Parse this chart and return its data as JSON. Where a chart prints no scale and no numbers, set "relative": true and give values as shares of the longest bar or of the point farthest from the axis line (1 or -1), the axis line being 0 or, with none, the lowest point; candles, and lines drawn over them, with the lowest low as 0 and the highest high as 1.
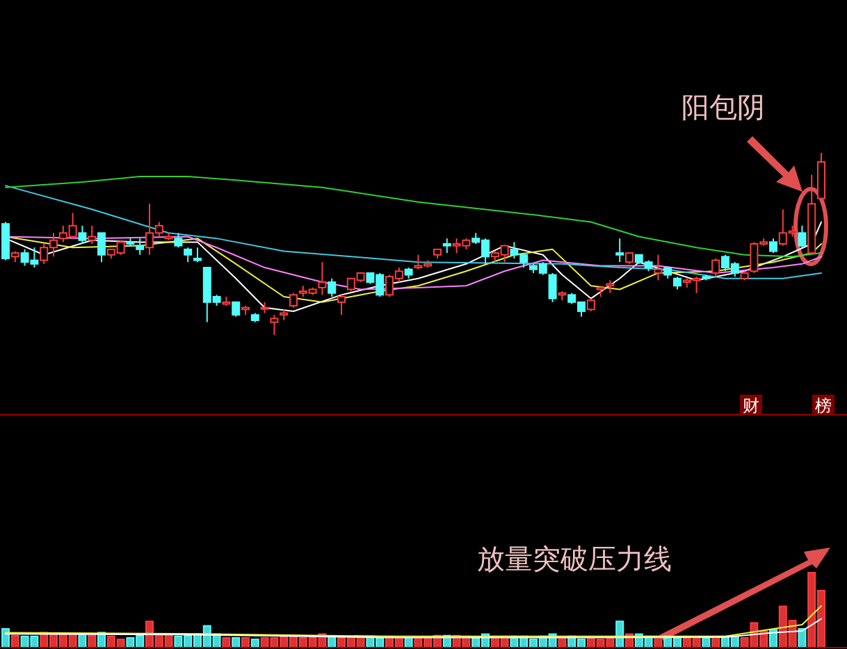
{
  "chart_data": [
    {
      "type": "candlestick",
      "relative": true,
      "categories": [
        null,
        null,
        null,
        null,
        null,
        null,
        null,
        null,
        null,
        null,
        null,
        null,
        null,
        null,
        null,
        null,
        null,
        null,
        null,
        null,
        null,
        null,
        null,
        null,
        null,
        null,
        null,
        null,
        null,
        null,
        null,
        null,
        null,
        null,
        null,
        null,
        null,
        null,
        null,
        null,
        null,
        null,
        null,
        null,
        null,
        null,
        null,
        null,
        null,
        null,
        null,
        null,
        null,
        null,
        null,
        null,
        null,
        null,
        null,
        null,
        null,
        null,
        null,
        null,
        null,
        null,
        null,
        null,
        null,
        null,
        null,
        null,
        null,
        null,
        null,
        null,
        null,
        null,
        null,
        null,
        null,
        null,
        null,
        null,
        null,
        null
      ],
      "ohlc": [
        [
          0.61,
          0.62,
          0.41,
          0.42
        ],
        [
          0.43,
          0.46,
          0.4,
          0.45
        ],
        [
          0.45,
          0.47,
          0.38,
          0.4
        ],
        [
          0.41,
          0.48,
          0.37,
          0.39
        ],
        [
          0.41,
          0.5,
          0.39,
          0.48
        ],
        [
          0.48,
          0.56,
          0.43,
          0.52
        ],
        [
          0.53,
          0.6,
          0.51,
          0.56
        ],
        [
          0.54,
          0.67,
          0.53,
          0.6
        ],
        [
          0.56,
          0.6,
          0.5,
          0.52
        ],
        [
          0.52,
          0.6,
          0.5,
          0.54
        ],
        [
          0.56,
          0.56,
          0.4,
          0.44
        ],
        [
          0.44,
          0.47,
          0.42,
          0.47
        ],
        [
          0.45,
          0.52,
          0.44,
          0.51
        ],
        [
          0.51,
          0.53,
          0.49,
          0.5
        ],
        [
          0.49,
          0.53,
          0.44,
          0.47
        ],
        [
          0.48,
          0.72,
          0.44,
          0.56
        ],
        [
          0.56,
          0.62,
          0.54,
          0.6
        ],
        [
          0.53,
          0.56,
          0.52,
          0.54
        ],
        [
          0.53,
          0.56,
          0.48,
          0.49
        ],
        [
          0.47,
          0.48,
          0.4,
          0.44
        ],
        [
          0.42,
          0.48,
          0.4,
          0.41
        ],
        [
          0.37,
          0.37,
          0.07,
          0.18
        ],
        [
          0.21,
          0.22,
          0.16,
          0.18
        ],
        [
          0.17,
          0.21,
          0.16,
          0.18
        ],
        [
          0.18,
          0.18,
          0.1,
          0.11
        ],
        [
          0.14,
          0.16,
          0.11,
          0.15
        ],
        [
          0.11,
          0.12,
          0.07,
          0.08
        ],
        [
          0.15,
          0.18,
          0.12,
          0.15
        ],
        [
          0.07,
          0.11,
          0,
          0.09
        ],
        [
          0.11,
          0.14,
          0.08,
          0.12
        ],
        [
          0.16,
          0.23,
          0.15,
          0.22
        ],
        [
          0.23,
          0.27,
          0.21,
          0.24
        ],
        [
          0.23,
          0.26,
          0.22,
          0.25
        ],
        [
          0.26,
          0.4,
          0.22,
          0.29
        ],
        [
          0.29,
          0.31,
          0.21,
          0.23
        ],
        [
          0.18,
          0.22,
          0.11,
          0.21
        ],
        [
          0.25,
          0.31,
          0.24,
          0.31
        ],
        [
          0.3,
          0.34,
          0.29,
          0.34
        ],
        [
          0.34,
          0.34,
          0.28,
          0.29
        ],
        [
          0.33,
          0.34,
          0.21,
          0.22
        ],
        [
          0.22,
          0.33,
          0.21,
          0.32
        ],
        [
          0.31,
          0.37,
          0.29,
          0.35
        ],
        [
          0.36,
          0.37,
          0.31,
          0.33
        ],
        [
          0.37,
          0.44,
          0.36,
          0.38
        ],
        [
          0.38,
          0.41,
          0.37,
          0.39
        ],
        [
          0.44,
          0.47,
          0.42,
          0.47
        ],
        [
          0.5,
          0.53,
          0.45,
          0.49
        ],
        [
          0.49,
          0.53,
          0.45,
          0.5
        ],
        [
          0.49,
          0.53,
          0.47,
          0.52
        ],
        [
          0.53,
          0.56,
          0.5,
          0.51
        ],
        [
          0.52,
          0.53,
          0.39,
          0.43
        ],
        [
          0.43,
          0.46,
          0.4,
          0.45
        ],
        [
          0.44,
          0.49,
          0.4,
          0.49
        ],
        [
          0.47,
          0.51,
          0.42,
          0.44
        ],
        [
          0.44,
          0.45,
          0.37,
          0.4
        ],
        [
          0.38,
          0.39,
          0.34,
          0.36
        ],
        [
          0.39,
          0.4,
          0.33,
          0.34
        ],
        [
          0.33,
          0.34,
          0.18,
          0.2
        ],
        [
          0.22,
          0.24,
          0.19,
          0.23
        ],
        [
          0.22,
          0.23,
          0.17,
          0.18
        ],
        [
          0.18,
          0.18,
          0.1,
          0.13
        ],
        [
          0.14,
          0.2,
          0.13,
          0.19
        ],
        [
          0.25,
          0.27,
          0.21,
          0.26
        ],
        [
          0.27,
          0.3,
          0.23,
          0.28
        ],
        [
          0.45,
          0.53,
          0.4,
          0.44
        ],
        [
          0.4,
          0.45,
          0.39,
          0.45
        ],
        [
          0.44,
          0.44,
          0.39,
          0.4
        ],
        [
          0.4,
          0.41,
          0.35,
          0.37
        ],
        [
          0.34,
          0.44,
          0.3,
          0.36
        ],
        [
          0.37,
          0.37,
          0.31,
          0.33
        ],
        [
          0.31,
          0.32,
          0.25,
          0.27
        ],
        [
          0.29,
          0.31,
          0.26,
          0.3
        ],
        [
          0.3,
          0.32,
          0.23,
          0.31
        ],
        [
          0.32,
          0.33,
          0.3,
          0.31
        ],
        [
          0.34,
          0.42,
          0.32,
          0.41
        ],
        [
          0.43,
          0.44,
          0.35,
          0.37
        ],
        [
          0.39,
          0.4,
          0.32,
          0.34
        ],
        [
          0.31,
          0.35,
          0.3,
          0.34
        ],
        [
          0.35,
          0.51,
          0.34,
          0.5
        ],
        [
          0.5,
          0.53,
          0.49,
          0.51
        ],
        [
          0.51,
          0.53,
          0.45,
          0.46
        ],
        [
          0.5,
          0.69,
          0.49,
          0.56
        ],
        [
          0.56,
          0.6,
          0.54,
          0.57
        ],
        [
          0.56,
          0.6,
          0.48,
          0.49
        ],
        [
          0.45,
          0.88,
          0.44,
          0.72
        ],
        [
          0.75,
          1,
          0.74,
          0.95
        ]
      ],
      "colors": [
        "#54fcfc",
        "#ff3c3c",
        "#54fcfc",
        "#54fcfc",
        "#ff3c3c",
        "#ff3c3c",
        "#ff3c3c",
        "#ff3c3c",
        "#54fcfc",
        "#ff3c3c",
        "#54fcfc",
        "#ff3c3c",
        "#ff3c3c",
        "#54fcfc",
        "#54fcfc",
        "#ff3c3c",
        "#ff3c3c",
        "#ff3c3c",
        "#54fcfc",
        "#54fcfc",
        "#54fcfc",
        "#54fcfc",
        "#54fcfc",
        "#ff3c3c",
        "#54fcfc",
        "#ff3c3c",
        "#54fcfc",
        "#ff3c3c",
        "#ff3c3c",
        "#ff3c3c",
        "#ff3c3c",
        "#ff3c3c",
        "#ff3c3c",
        "#ff3c3c",
        "#54fcfc",
        "#ff3c3c",
        "#ff3c3c",
        "#ff3c3c",
        "#54fcfc",
        "#54fcfc",
        "#ff3c3c",
        "#ff3c3c",
        "#54fcfc",
        "#ff3c3c",
        "#ff3c3c",
        "#ff3c3c",
        "#54fcfc",
        "#ff3c3c",
        "#ff3c3c",
        "#54fcfc",
        "#54fcfc",
        "#ff3c3c",
        "#ff3c3c",
        "#54fcfc",
        "#54fcfc",
        "#54fcfc",
        "#54fcfc",
        "#54fcfc",
        "#ff3c3c",
        "#54fcfc",
        "#54fcfc",
        "#ff3c3c",
        "#ff3c3c",
        "#ff3c3c",
        "#54fcfc",
        "#ff3c3c",
        "#54fcfc",
        "#54fcfc",
        "#ff3c3c",
        "#54fcfc",
        "#54fcfc",
        "#ff3c3c",
        "#ff3c3c",
        "#54fcfc",
        "#ff3c3c",
        "#54fcfc",
        "#54fcfc",
        "#ff3c3c",
        "#ff3c3c",
        "#ff3c3c",
        "#54fcfc",
        "#ff3c3c",
        "#ff3c3c",
        "#54fcfc",
        "#ff3c3c",
        "#ff3c3c"
      ],
      "series": [
        {
          "type": "line",
          "color": "#ffffff",
          "values": [
            0.53,
            null,
            null,
            null,
            0.44,
            null,
            null,
            null,
            null,
            0.52,
            null,
            null,
            null,
            null,
            0.51,
            null,
            null,
            null,
            null,
            null,
            0.51,
            null,
            null,
            null,
            0.31,
            null,
            null,
            0.15,
            null,
            null,
            0.13,
            null,
            null,
            null,
            null,
            0.22,
            null,
            null,
            null,
            0.27,
            null,
            null,
            null,
            0.31,
            null,
            null,
            null,
            null,
            0.39,
            null,
            null,
            null,
            0.49,
            null,
            null,
            null,
            0.44,
            null,
            0.33,
            null,
            null,
            0.2,
            null,
            null,
            0.31,
            null,
            0.4,
            null,
            null,
            0.35,
            null,
            null,
            0.3,
            null,
            null,
            null,
            null,
            0.35,
            null,
            null,
            null,
            0.43,
            null,
            null,
            0.5,
            0.62
          ]
        },
        {
          "type": "line",
          "color": "#f0f040",
          "values": [
            0.54,
            null,
            null,
            null,
            null,
            null,
            null,
            0.48,
            null,
            null,
            null,
            null,
            null,
            null,
            0.49,
            null,
            null,
            null,
            null,
            null,
            0.53,
            null,
            null,
            null,
            0.39,
            null,
            null,
            null,
            null,
            0.21,
            null,
            null,
            null,
            0.18,
            null,
            null,
            null,
            null,
            null,
            0.24,
            null,
            null,
            null,
            0.27,
            null,
            null,
            null,
            null,
            0.35,
            null,
            null,
            null,
            null,
            0.44,
            null,
            null,
            null,
            0.47,
            null,
            null,
            null,
            0.27,
            null,
            null,
            0.25,
            null,
            null,
            null,
            0.34,
            null,
            null,
            null,
            null,
            null,
            0.35,
            null,
            null,
            null,
            null,
            null,
            0.4,
            null,
            null,
            null,
            0.45,
            0.5
          ]
        },
        {
          "type": "line",
          "color": "#ff80ff",
          "values": [
            0.54,
            null,
            null,
            null,
            null,
            null,
            null,
            null,
            null,
            0.53,
            null,
            null,
            null,
            null,
            null,
            null,
            null,
            null,
            null,
            0.54,
            null,
            null,
            0.48,
            null,
            null,
            null,
            null,
            0.37,
            null,
            null,
            null,
            null,
            null,
            0.29,
            null,
            null,
            null,
            0.25,
            null,
            null,
            null,
            null,
            null,
            0.26,
            null,
            null,
            null,
            null,
            0.27,
            null,
            null,
            null,
            0.35,
            null,
            null,
            null,
            0.41,
            null,
            null,
            null,
            null,
            null,
            0.38,
            null,
            null,
            null,
            null,
            null,
            0.38,
            null,
            null,
            null,
            null,
            null,
            0.34,
            null,
            null,
            null,
            null,
            null,
            0.37,
            null,
            null,
            0.39,
            null,
            0.43
          ]
        },
        {
          "type": "line",
          "color": "#40c8e0",
          "values": [
            0.82,
            null,
            null,
            null,
            null,
            null,
            null,
            null,
            null,
            0.69,
            null,
            null,
            null,
            null,
            null,
            null,
            null,
            0.56,
            null,
            null,
            null,
            null,
            0.53,
            null,
            null,
            null,
            null,
            null,
            null,
            0.46,
            null,
            null,
            null,
            null,
            null,
            null,
            0.43,
            null,
            null,
            null,
            null,
            null,
            null,
            0.4,
            null,
            null,
            null,
            null,
            null,
            null,
            null,
            null,
            null,
            null,
            null,
            null,
            null,
            null,
            0.39,
            null,
            null,
            null,
            null,
            null,
            0.37,
            null,
            null,
            null,
            null,
            0.36,
            null,
            null,
            null,
            null,
            null,
            0.31,
            null,
            null,
            null,
            null,
            null,
            0.31,
            null,
            null,
            null,
            0.34
          ]
        },
        {
          "type": "line",
          "color": "#30d030",
          "values": [
            0.81,
            null,
            null,
            null,
            null,
            null,
            null,
            null,
            0.84,
            null,
            null,
            null,
            null,
            null,
            0.87,
            null,
            null,
            null,
            null,
            0.87,
            null,
            null,
            null,
            null,
            0.85,
            null,
            null,
            null,
            null,
            null,
            null,
            null,
            null,
            0.81,
            null,
            null,
            null,
            null,
            null,
            null,
            null,
            null,
            null,
            0.73,
            null,
            null,
            null,
            null,
            null,
            null,
            null,
            null,
            null,
            null,
            null,
            0.66,
            null,
            null,
            null,
            null,
            null,
            0.62,
            null,
            null,
            null,
            null,
            0.54,
            null,
            null,
            null,
            null,
            null,
            0.48,
            null,
            null,
            null,
            null,
            0.44,
            null,
            null,
            null,
            null,
            0.43,
            null,
            null,
            0.45
          ]
        }
      ],
      "annotations": [
        "阳包阴",
        "财",
        "榜"
      ]
    },
    {
      "type": "bar",
      "relative": true,
      "categories": [
        null,
        null,
        null,
        null,
        null,
        null,
        null,
        null,
        null,
        null,
        null,
        null,
        null,
        null,
        null,
        null,
        null,
        null,
        null,
        null,
        null,
        null,
        null,
        null,
        null,
        null,
        null,
        null,
        null,
        null,
        null,
        null,
        null,
        null,
        null,
        null,
        null,
        null,
        null,
        null,
        null,
        null,
        null,
        null,
        null,
        null,
        null,
        null,
        null,
        null,
        null,
        null,
        null,
        null,
        null,
        null,
        null,
        null,
        null,
        null,
        null,
        null,
        null,
        null,
        null,
        null,
        null,
        null,
        null,
        null,
        null,
        null,
        null,
        null,
        null,
        null,
        null,
        null,
        null,
        null,
        null,
        null,
        null,
        null,
        null,
        null
      ],
      "series": [
        {
          "type": "bar",
          "values": [
            0.25,
            0.16,
            0.15,
            0.15,
            0.2,
            0.18,
            0.18,
            0.18,
            0.18,
            0.16,
            0.2,
            0.15,
            0.11,
            0.13,
            0.16,
            0.35,
            0.18,
            0.18,
            0.15,
            0.16,
            0.18,
            0.29,
            0.18,
            0.13,
            0.13,
            0.13,
            0.11,
            0.13,
            0.13,
            0.15,
            0.16,
            0.13,
            0.13,
            0.18,
            0.15,
            0.13,
            0.15,
            0.15,
            0.15,
            0.13,
            0.15,
            0.13,
            0.13,
            0.13,
            0.13,
            0.16,
            0.16,
            0.16,
            0.15,
            0.13,
            0.18,
            0.15,
            0.15,
            0.15,
            0.15,
            0.11,
            0.15,
            0.18,
            0.13,
            0.15,
            0.11,
            0.13,
            0.11,
            0.13,
            0.35,
            0.18,
            0.18,
            0.15,
            0.15,
            0.15,
            0.13,
            0.13,
            0.13,
            0.13,
            0.15,
            0.15,
            0.15,
            0.13,
            0.33,
            0.22,
            0.24,
            0.55,
            0.36,
            0.25,
            1,
            0.76
          ],
          "colors": [
            "#54fcfc",
            "#ff3c3c",
            "#54fcfc",
            "#54fcfc",
            "#ff3c3c",
            "#ff3c3c",
            "#ff3c3c",
            "#ff3c3c",
            "#54fcfc",
            "#ff3c3c",
            "#54fcfc",
            "#ff3c3c",
            "#ff3c3c",
            "#54fcfc",
            "#54fcfc",
            "#ff3c3c",
            "#ff3c3c",
            "#ff3c3c",
            "#54fcfc",
            "#54fcfc",
            "#54fcfc",
            "#54fcfc",
            "#54fcfc",
            "#ff3c3c",
            "#54fcfc",
            "#ff3c3c",
            "#54fcfc",
            "#ff3c3c",
            "#ff3c3c",
            "#ff3c3c",
            "#ff3c3c",
            "#ff3c3c",
            "#ff3c3c",
            "#ff3c3c",
            "#54fcfc",
            "#ff3c3c",
            "#ff3c3c",
            "#ff3c3c",
            "#54fcfc",
            "#54fcfc",
            "#ff3c3c",
            "#ff3c3c",
            "#54fcfc",
            "#ff3c3c",
            "#ff3c3c",
            "#ff3c3c",
            "#54fcfc",
            "#ff3c3c",
            "#ff3c3c",
            "#54fcfc",
            "#54fcfc",
            "#ff3c3c",
            "#ff3c3c",
            "#54fcfc",
            "#54fcfc",
            "#54fcfc",
            "#54fcfc",
            "#54fcfc",
            "#ff3c3c",
            "#54fcfc",
            "#54fcfc",
            "#ff3c3c",
            "#ff3c3c",
            "#ff3c3c",
            "#54fcfc",
            "#ff3c3c",
            "#54fcfc",
            "#54fcfc",
            "#ff3c3c",
            "#54fcfc",
            "#54fcfc",
            "#ff3c3c",
            "#ff3c3c",
            "#54fcfc",
            "#ff3c3c",
            "#54fcfc",
            "#54fcfc",
            "#ff3c3c",
            "#ff3c3c",
            "#ff3c3c",
            "#54fcfc",
            "#ff3c3c",
            "#ff3c3c",
            "#54fcfc",
            "#ff3c3c",
            "#ff3c3c"
          ]
        }
      ],
      "annotations": [
        "放量突破压力线"
      ]
    },
    {
      "type": "line",
      "relative": true,
      "categories": [
        null,
        null,
        null,
        null,
        null,
        null,
        null,
        null,
        null,
        null,
        null,
        null,
        null,
        null,
        null,
        null,
        null,
        null,
        null,
        null,
        null,
        null,
        null,
        null,
        null,
        null,
        null,
        null,
        null,
        null,
        null,
        null,
        null,
        null,
        null,
        null,
        null,
        null,
        null,
        null,
        null,
        null,
        null,
        null,
        null,
        null,
        null,
        null,
        null,
        null,
        null,
        null,
        null,
        null,
        null,
        null,
        null,
        null,
        null,
        null,
        null,
        null,
        null,
        null,
        null,
        null,
        null,
        null,
        null,
        null,
        null,
        null,
        null,
        null,
        null,
        null,
        null,
        null,
        null,
        null,
        null,
        null,
        null,
        null,
        null,
        null
      ],
      "series": [
        {
          "type": "line",
          "color": "#f0f040",
          "values": [
            0.36,
            null,
            null,
            null,
            null,
            null,
            null,
            null,
            null,
            null,
            null,
            null,
            null,
            null,
            null,
            null,
            null,
            null,
            null,
            null,
            0.33,
            null,
            null,
            null,
            null,
            null,
            null,
            null,
            null,
            null,
            null,
            null,
            null,
            null,
            null,
            null,
            null,
            null,
            null,
            null,
            0.27,
            null,
            null,
            null,
            null,
            null,
            null,
            null,
            null,
            null,
            null,
            null,
            null,
            null,
            null,
            null,
            null,
            null,
            null,
            null,
            0.27,
            null,
            null,
            null,
            null,
            null,
            null,
            null,
            null,
            null,
            null,
            null,
            null,
            null,
            null,
            0.27,
            null,
            null,
            null,
            null,
            0.45,
            null,
            null,
            0.55,
            null,
            1
          ]
        },
        {
          "type": "line",
          "color": "#ffffff",
          "values": [
            0.33,
            null,
            null,
            null,
            null,
            null,
            null,
            null,
            null,
            null,
            null,
            null,
            null,
            null,
            null,
            null,
            null,
            null,
            null,
            null,
            0.31,
            null,
            null,
            null,
            null,
            null,
            null,
            null,
            null,
            null,
            null,
            null,
            null,
            null,
            null,
            null,
            null,
            null,
            null,
            null,
            0.24,
            null,
            null,
            null,
            null,
            null,
            null,
            null,
            null,
            null,
            null,
            null,
            null,
            null,
            null,
            null,
            null,
            null,
            null,
            null,
            0.24,
            null,
            null,
            null,
            null,
            null,
            null,
            null,
            null,
            null,
            null,
            null,
            null,
            null,
            null,
            0.25,
            null,
            null,
            null,
            null,
            0.36,
            null,
            null,
            0.4,
            null,
            0.69
          ]
        }
      ]
    }
  ]
}
